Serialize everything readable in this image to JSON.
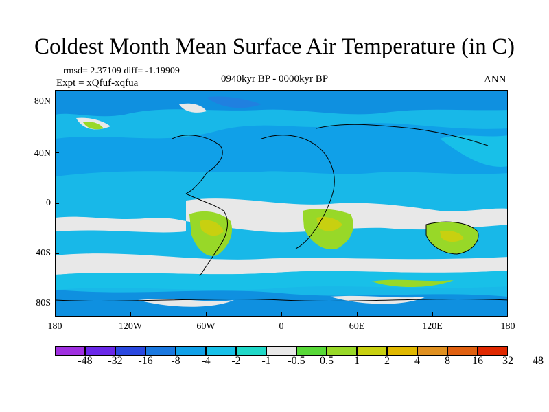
{
  "title": "Coldest Month Mean Surface Air Temperature (in C)",
  "stats": "rmsd= 2.37109 diff= -1.19909",
  "expt": "Expt = xQfuf-xqfua",
  "period": "0940kyr BP - 0000kyr BP",
  "season": "ANN",
  "axes": {
    "y_ticks": [
      "80N",
      "40N",
      "0",
      "40S",
      "80S"
    ],
    "x_ticks": [
      "180",
      "120W",
      "60W",
      "0",
      "60E",
      "120E",
      "180"
    ]
  },
  "legend": {
    "colors": [
      "#a030e0",
      "#6a28e8",
      "#2a48e0",
      "#1a78e0",
      "#10a0e8",
      "#18c0e8",
      "#20d8c8",
      "#e8e8e8",
      "#58d838",
      "#98d828",
      "#c8d010",
      "#e0b800",
      "#e09020",
      "#e06010",
      "#e02800"
    ],
    "labels": [
      "-48",
      "-32",
      "-16",
      "-8",
      "-4",
      "-2",
      "-1",
      "-0.5",
      "0.5",
      "1",
      "2",
      "4",
      "8",
      "16",
      "32",
      "48"
    ]
  },
  "colors": {
    "ocean_base": "#18b8e8",
    "land_cool": "#10a0e8",
    "near_zero": "#e8e8e8",
    "warm": "#98d828"
  }
}
